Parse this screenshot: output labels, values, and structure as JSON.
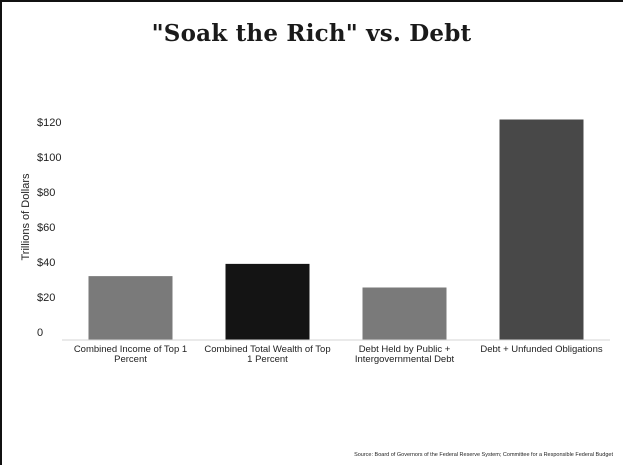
{
  "chart_data": {
    "type": "bar",
    "title": "\"Soak the Rich\" vs. Debt",
    "ylabel": "Trillions of Dollars",
    "xlabel": "",
    "ylim": [
      0,
      130
    ],
    "yticks": [
      0,
      20,
      40,
      60,
      80,
      100,
      120
    ],
    "ytick_labels": [
      "0",
      "$20",
      "$40",
      "$60",
      "$80",
      "$100",
      "$120"
    ],
    "categories": [
      [
        "Combined Income of Top 1",
        "Percent"
      ],
      [
        "Combined Total Wealth of Top",
        "1 Percent"
      ],
      [
        "Debt Held by Public +",
        "Intergovernmental Debt"
      ],
      [
        "Debt + Unfunded Obligations"
      ]
    ],
    "values": [
      36.5,
      43.5,
      30,
      126
    ],
    "colors": [
      "#7a7a7a",
      "#141414",
      "#7a7a7a",
      "#484848"
    ],
    "grid": false,
    "legend": "none"
  },
  "source": "Source: Board of Governors of the Federal Reserve System; Committee for a Responsible Federal Budget"
}
